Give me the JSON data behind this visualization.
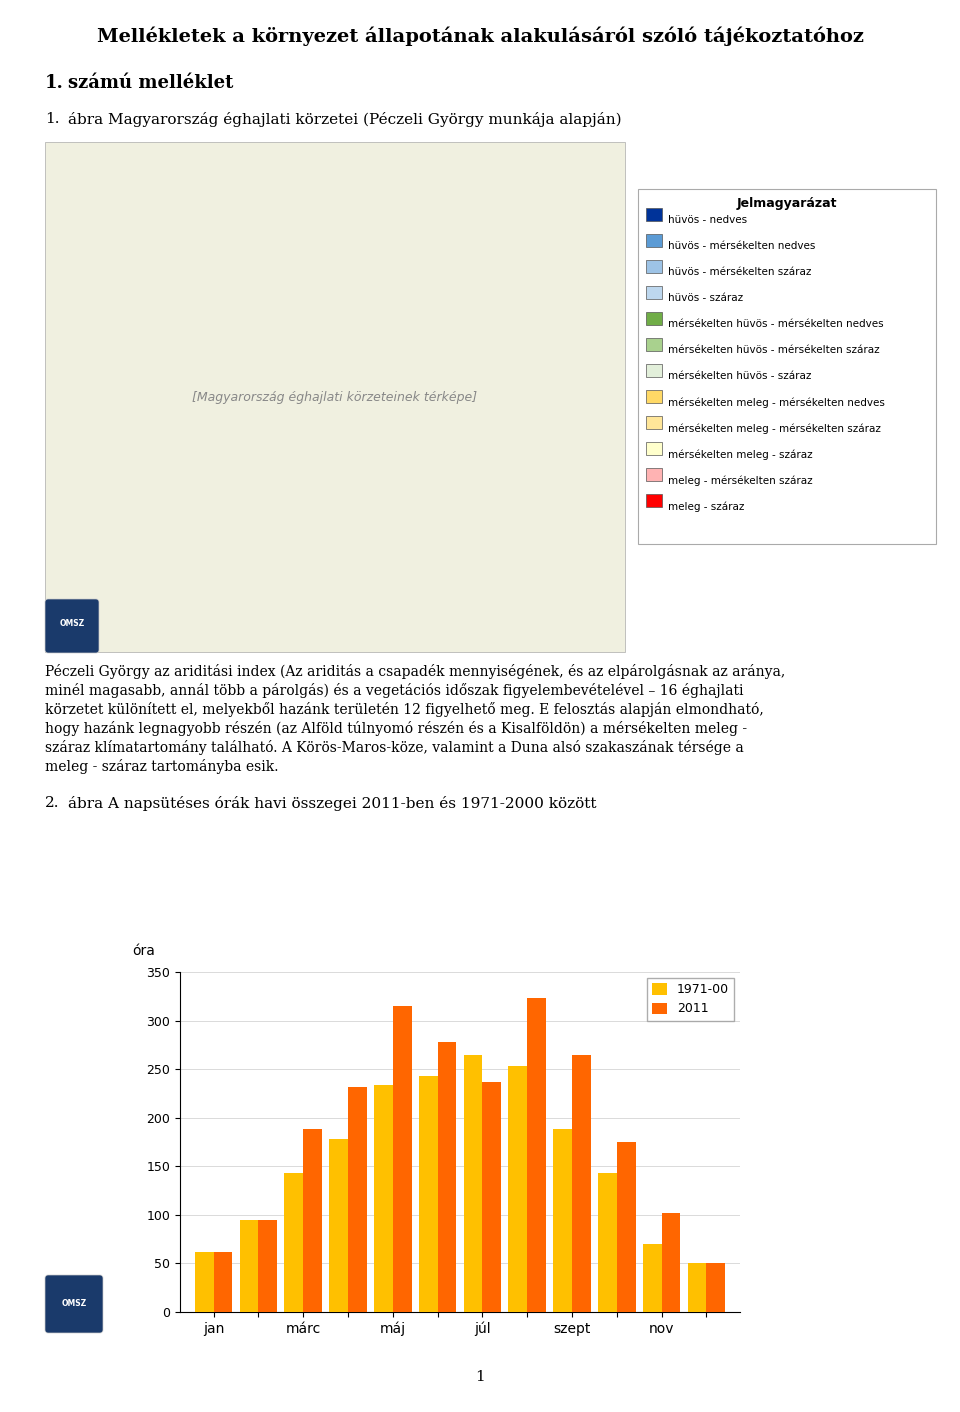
{
  "title": "Mellékletek a környezet állapotának alakulásáról szóló tájékoztatóhoz",
  "section1_label": "1.",
  "section1_text": "számú melléklet",
  "fig1_label": "1.",
  "fig1_text": "ábra Magyarország éghajlati körzetei (Péczeli György munkája alapján)",
  "body_lines": [
    "Péczeli György az ariditási index (Az ariditás a csapadék mennyiségének, és az elpárolgásnak az aránya,",
    "minél magasabb, annál több a párolgás) és a vegetációs időszak figyelembevételével – 16 éghajlati",
    "körzetet különített el, melyekből hazánk területén 12 figyelhető meg. E felosztás alapján elmondható,",
    "hogy hazánk legnagyobb részén (az Alföld túlnyomó részén és a Kisalföldön) a mérsékelten meleg -",
    "száraz klímatartomány található. A Körös-Maros-köze, valamint a Duna alsó szakaszának térsége a",
    "meleg - száraz tartományba esik."
  ],
  "fig2_label": "2.",
  "fig2_text": "ábra A napsütéses órák havi összegei 2011-ben és 1971-2000 között",
  "ylabel": "óra",
  "ylim": [
    0,
    350
  ],
  "yticks": [
    0,
    50,
    100,
    150,
    200,
    250,
    300,
    350
  ],
  "series1_label": "1971-00",
  "series2_label": "2011",
  "series1_color": "#FFC000",
  "series2_color": "#FF6600",
  "months_6": [
    "jan",
    "márc",
    "máj",
    "júl",
    "szept",
    "nov"
  ],
  "data_1971": [
    62,
    95,
    143,
    178,
    234,
    243,
    265,
    253,
    188,
    143,
    70,
    50
  ],
  "data_2011": [
    62,
    95,
    188,
    232,
    315,
    278,
    237,
    323,
    265,
    175,
    102,
    50
  ],
  "months_labels_12": [
    "jan",
    "",
    "márc",
    "",
    "máj",
    "",
    "júl",
    "",
    "szept",
    "",
    "nov",
    ""
  ],
  "page_number": "1",
  "background_color": "#ffffff",
  "legend_entries": [
    {
      "color": "#003399",
      "label": "hüvös - nedves"
    },
    {
      "color": "#5B9BD5",
      "label": "hüvös - mérsékelten nedves"
    },
    {
      "color": "#9DC3E6",
      "label": "hüvös - mérsékelten száraz"
    },
    {
      "color": "#BDD7EE",
      "label": "hüvös - száraz"
    },
    {
      "color": "#70AD47",
      "label": "mérsékelten hüvös - mérsékelten nedves"
    },
    {
      "color": "#A9D18E",
      "label": "mérsékelten hüvös - mérsékelten száraz"
    },
    {
      "color": "#E2EFDA",
      "label": "mérsékelten hüvös - száraz"
    },
    {
      "color": "#FFD966",
      "label": "mérsékelten meleg - mérsékelten nedves"
    },
    {
      "color": "#FFE699",
      "label": "mérsékelten meleg - mérsékelten száraz"
    },
    {
      "color": "#FFFFCC",
      "label": "mérsékelten meleg - száraz"
    },
    {
      "color": "#FFB3B3",
      "label": "meleg - mérsékelten száraz"
    },
    {
      "color": "#FF0000",
      "label": "meleg - száraz"
    }
  ]
}
